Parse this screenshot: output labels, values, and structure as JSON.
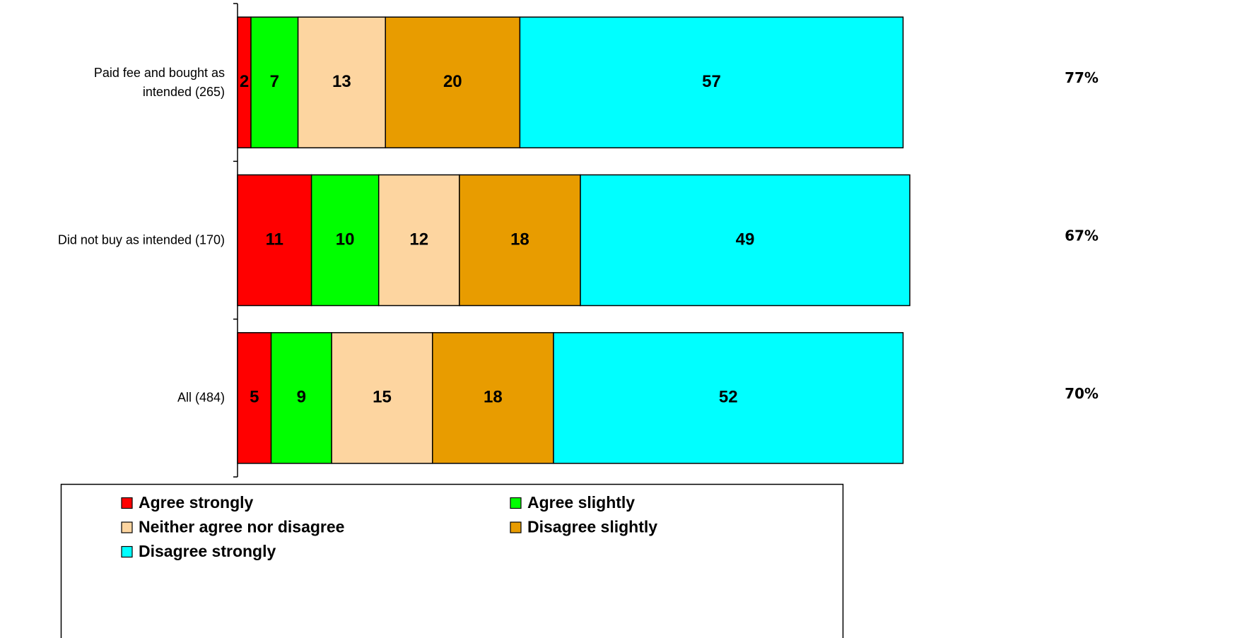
{
  "chart_data": {
    "type": "stacked-bar",
    "orientation": "horizontal",
    "categories": [
      "Paid fee and bought as\nintended (265)",
      "Did not buy as intended (170)",
      "All (484)"
    ],
    "series": [
      {
        "name": "Agree strongly",
        "color": "#ff0000",
        "values": [
          2,
          11,
          5
        ]
      },
      {
        "name": "Agree slightly",
        "color": "#00ff00",
        "values": [
          7,
          10,
          9
        ]
      },
      {
        "name": "Neither agree nor disagree",
        "color": "#fdd5a0",
        "values": [
          13,
          12,
          15
        ]
      },
      {
        "name": "Disagree slightly",
        "color": "#e89c00",
        "values": [
          20,
          18,
          18
        ]
      },
      {
        "name": "Disagree strongly",
        "color": "#00ffff",
        "values": [
          57,
          49,
          52
        ]
      }
    ],
    "xlim": [
      0,
      100
    ],
    "right_labels": [
      "77%",
      "67%",
      "70%"
    ],
    "legend": "bottom"
  }
}
